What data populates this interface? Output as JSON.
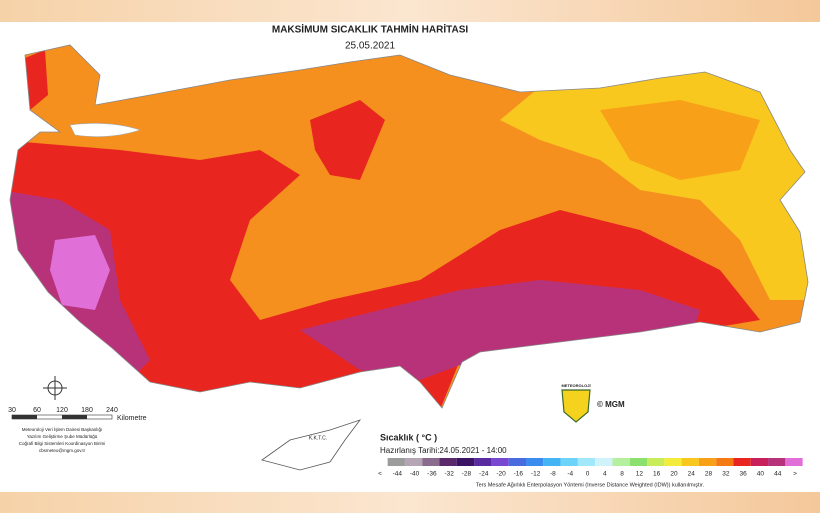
{
  "header": {
    "title": "MAKSİMUM SICAKLIK TAHMİN HARİTASI",
    "date": "25.05.2021"
  },
  "scale": {
    "ticks": [
      30,
      60,
      120,
      180,
      240
    ],
    "unit": "Kilometre"
  },
  "credits": [
    "Meteoroloji Veri İşlem Dairesi Başkanlığı",
    "Yazılım Geliştirme Şube Müdürlüğü",
    "Coğrafi Bilgi Sistemleri Koordinasyon Birimi",
    "cbsmeteo@mgm.gov.tr"
  ],
  "inset": {
    "label": "K.K.T.C."
  },
  "logo": {
    "text": "METEOROLOJİ",
    "copyright": "© MGM"
  },
  "legend": {
    "title": "Sıcaklık ( °C )",
    "prepared": "Hazırlanış Tarihi:24.05.2021 - 14:00",
    "ticks": [
      "<",
      -44,
      -40,
      -36,
      -32,
      -28,
      -24,
      -20,
      -16,
      -12,
      -8,
      -4,
      0,
      4,
      8,
      12,
      16,
      20,
      24,
      28,
      32,
      36,
      40,
      44,
      ">"
    ],
    "colors": [
      "#9c9c9c",
      "#b4a6b4",
      "#8c6c8c",
      "#5a2a6a",
      "#3c1464",
      "#5a2aa0",
      "#7848d0",
      "#4a6ae0",
      "#3c8cf0",
      "#44b4f4",
      "#6cd4f8",
      "#a0e8fa",
      "#d0f2fa",
      "#b4f0a0",
      "#8ce070",
      "#c8ec5a",
      "#f4ec3c",
      "#f8c81e",
      "#f8a018",
      "#f47a14",
      "#e8261f",
      "#c8205a",
      "#b8327a",
      "#e070d8"
    ],
    "note": "Ters Mesafe Ağırlıklı Enterpolasyon Yöntemi (Inverse Distance Weighted (IDW)) kullanılmıştır."
  }
}
